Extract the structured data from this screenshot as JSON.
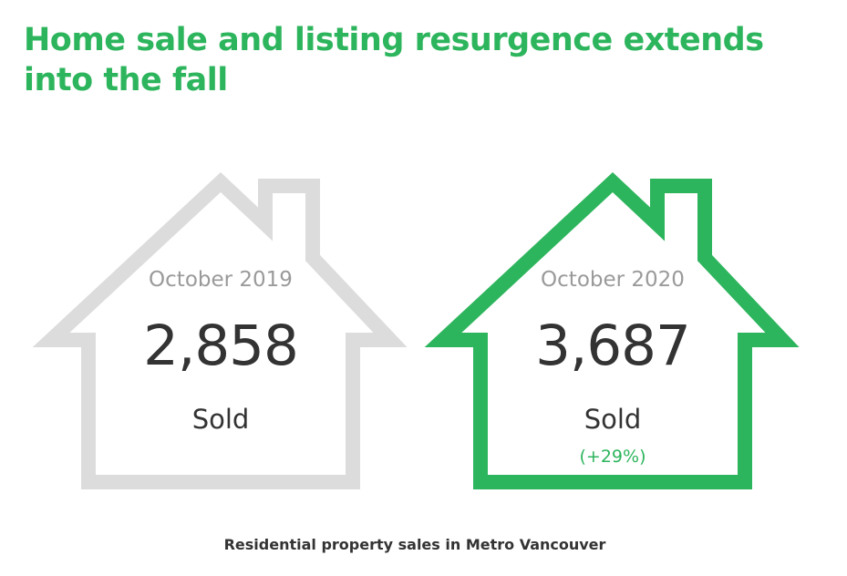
{
  "title": "Home sale and listing resurgence extends into the fall",
  "caption": "Residential property sales in Metro Vancouver",
  "colors": {
    "accent": "#2db55d",
    "neutral_outline": "#dcdcdc",
    "value_text": "#333333",
    "period_text": "#9a9a9a"
  },
  "cards": [
    {
      "period": "October 2019",
      "value": "2,858",
      "label": "Sold",
      "change": "",
      "outline_color": "#dcdcdc",
      "icon": "house-outline-icon"
    },
    {
      "period": "October 2020",
      "value": "3,687",
      "label": "Sold",
      "change": "(+29%)",
      "outline_color": "#2db55d",
      "icon": "house-outline-icon"
    }
  ]
}
